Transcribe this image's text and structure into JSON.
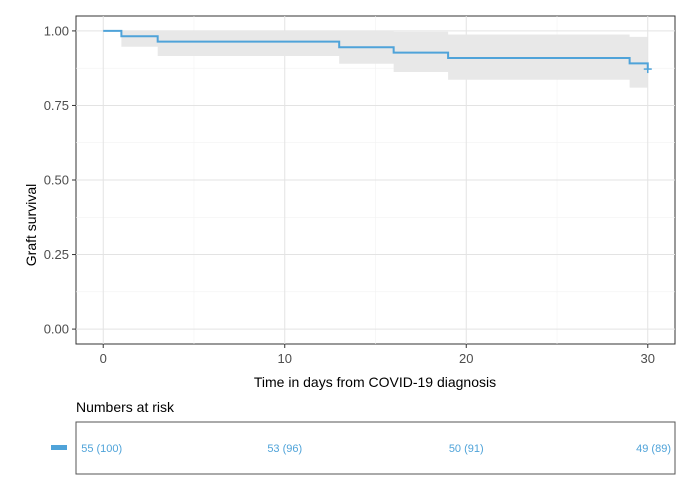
{
  "chart_data": {
    "type": "line",
    "subtype": "kaplan-meier",
    "title": "",
    "xlabel": "Time in days from COVID-19 diagnosis",
    "ylabel": "Graft survival",
    "xlim": [
      -1.5,
      31.5
    ],
    "ylim": [
      -0.05,
      1.05
    ],
    "x_ticks": [
      0,
      10,
      20,
      30
    ],
    "y_ticks": [
      0.0,
      0.25,
      0.5,
      0.75,
      1.0
    ],
    "y_tick_labels": [
      "0.00",
      "0.25",
      "0.50",
      "0.75",
      "1.00"
    ],
    "grid": true,
    "legend": "none",
    "line_color": "#4fa3d9",
    "ci_color": "#e8e8e8",
    "series": [
      {
        "steps": [
          {
            "x": 0,
            "y": 1.0,
            "lower": 1.0,
            "upper": 1.0
          },
          {
            "x": 1,
            "y": 0.982,
            "lower": 0.947,
            "upper": 1.0
          },
          {
            "x": 3,
            "y": 0.964,
            "lower": 0.916,
            "upper": 1.0
          },
          {
            "x": 13,
            "y": 0.945,
            "lower": 0.89,
            "upper": 1.0
          },
          {
            "x": 16,
            "y": 0.927,
            "lower": 0.862,
            "upper": 0.997
          },
          {
            "x": 19,
            "y": 0.909,
            "lower": 0.836,
            "upper": 0.988
          },
          {
            "x": 29,
            "y": 0.891,
            "lower": 0.81,
            "upper": 0.98
          },
          {
            "x": 30,
            "y": 0.872,
            "lower": 0.81,
            "upper": 0.98
          }
        ],
        "censored": [
          {
            "x": 30,
            "y": 0.872
          }
        ]
      }
    ],
    "risk_table": {
      "title": "Numbers at risk",
      "entries": [
        {
          "x": 0,
          "label": "55 (100)"
        },
        {
          "x": 10,
          "label": "53 (96)"
        },
        {
          "x": 20,
          "label": "50 (91)"
        },
        {
          "x": 30,
          "label": "49 (89)"
        }
      ]
    }
  }
}
